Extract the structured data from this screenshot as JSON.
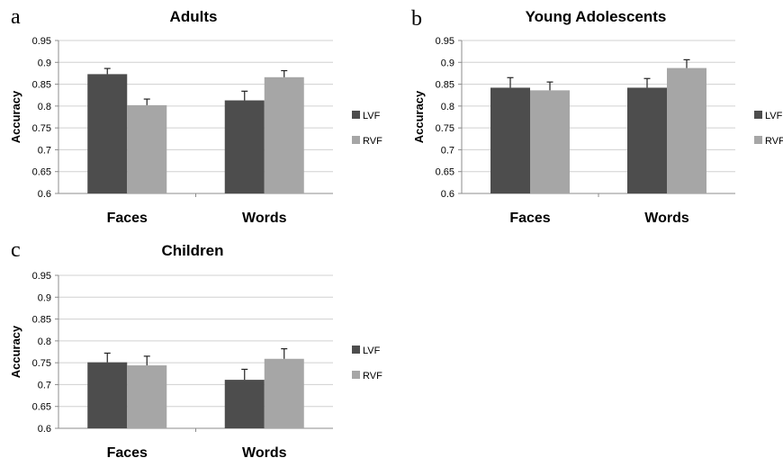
{
  "colors": {
    "lvf": "#4d4d4d",
    "rvf": "#a6a6a6",
    "grid": "#d0d0d0",
    "axis": "#8c8c8c",
    "text": "#000000",
    "error_bar": "#222222"
  },
  "chart_data": [
    {
      "panel_letter": "a",
      "type": "bar",
      "title": "Adults",
      "ylabel": "Accuracy",
      "xlabel": "",
      "categories": [
        "Faces",
        "Words"
      ],
      "ylim": [
        0.6,
        0.95
      ],
      "yticks": [
        "0.95",
        "0.9",
        "0.85",
        "0.8",
        "0.75",
        "0.7",
        "0.65",
        "0.6"
      ],
      "grid": true,
      "legend_position": "right",
      "series": [
        {
          "name": "LVF",
          "values": [
            0.873,
            0.813
          ],
          "errors": [
            0.013,
            0.021
          ]
        },
        {
          "name": "RVF",
          "values": [
            0.802,
            0.866
          ],
          "errors": [
            0.014,
            0.015
          ]
        }
      ]
    },
    {
      "panel_letter": "b",
      "type": "bar",
      "title": "Young Adolescents",
      "ylabel": "Accuracy",
      "xlabel": "",
      "categories": [
        "Faces",
        "Words"
      ],
      "ylim": [
        0.6,
        0.95
      ],
      "yticks": [
        "0.95",
        "0.9",
        "0.85",
        "0.8",
        "0.75",
        "0.7",
        "0.65",
        "0.6"
      ],
      "grid": true,
      "legend_position": "right",
      "series": [
        {
          "name": "LVF",
          "values": [
            0.842,
            0.842
          ],
          "errors": [
            0.023,
            0.021
          ]
        },
        {
          "name": "RVF",
          "values": [
            0.836,
            0.887
          ],
          "errors": [
            0.019,
            0.019
          ]
        }
      ]
    },
    {
      "panel_letter": "c",
      "type": "bar",
      "title": "Children",
      "ylabel": "Accuracy",
      "xlabel": "",
      "categories": [
        "Faces",
        "Words"
      ],
      "ylim": [
        0.6,
        0.95
      ],
      "yticks": [
        "0.95",
        "0.9",
        "0.85",
        "0.8",
        "0.75",
        "0.7",
        "0.65",
        "0.6"
      ],
      "grid": true,
      "legend_position": "right",
      "series": [
        {
          "name": "LVF",
          "values": [
            0.751,
            0.711
          ],
          "errors": [
            0.021,
            0.024
          ]
        },
        {
          "name": "RVF",
          "values": [
            0.744,
            0.759
          ],
          "errors": [
            0.021,
            0.023
          ]
        }
      ]
    }
  ]
}
